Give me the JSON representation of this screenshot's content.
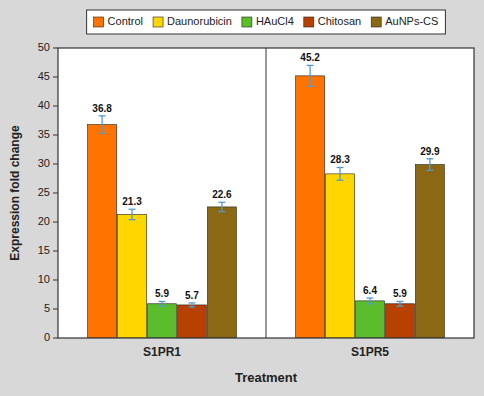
{
  "chart_data": {
    "type": "bar",
    "categories": [
      "S1PR1",
      "S1PR5"
    ],
    "series": [
      {
        "name": "Control",
        "color": "#FF7400",
        "values": [
          36.8,
          45.2
        ],
        "errors": [
          1.5,
          1.8
        ]
      },
      {
        "name": "Daunorubicin",
        "color": "#FFD700",
        "values": [
          21.3,
          28.3
        ],
        "errors": [
          0.9,
          1.1
        ]
      },
      {
        "name": "HAuCl4",
        "color": "#5BBD2C",
        "values": [
          5.9,
          6.4
        ],
        "errors": [
          0.4,
          0.5
        ]
      },
      {
        "name": "Chitosan",
        "color": "#B84000",
        "values": [
          5.7,
          5.9
        ],
        "errors": [
          0.35,
          0.4
        ]
      },
      {
        "name": "AuNPs-CS",
        "color": "#8B6914",
        "values": [
          22.6,
          29.9
        ],
        "errors": [
          0.8,
          1.0
        ]
      }
    ],
    "xlabel": "Treatment",
    "ylabel": "Expression fold change",
    "ylim": [
      0,
      50
    ],
    "yticks": [
      0,
      5,
      10,
      15,
      20,
      25,
      30,
      35,
      40,
      45,
      50
    ],
    "grid": false,
    "legend": "top",
    "data_labels": true
  }
}
